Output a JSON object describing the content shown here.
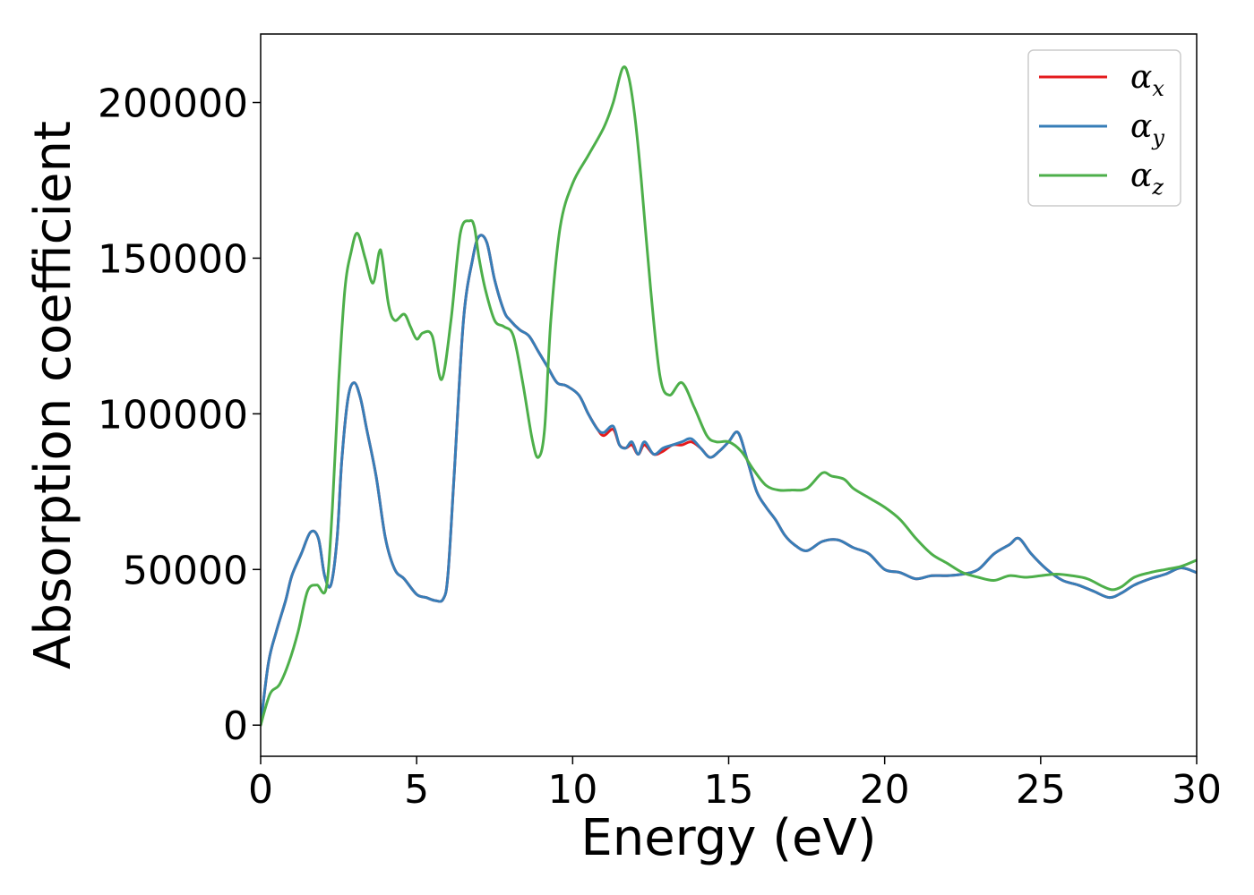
{
  "chart_data": {
    "type": "line",
    "xlabel": "Energy (eV)",
    "ylabel": "Absorption coefficient",
    "xlim": [
      0,
      30
    ],
    "ylim": [
      -10000,
      222000
    ],
    "xticks": [
      0,
      5,
      10,
      15,
      20,
      25,
      30
    ],
    "xtick_labels": [
      "0",
      "5",
      "10",
      "15",
      "20",
      "25",
      "30"
    ],
    "yticks": [
      0,
      50000,
      100000,
      150000,
      200000
    ],
    "ytick_labels": [
      "0",
      "50000",
      "100000",
      "150000",
      "200000"
    ],
    "grid": false,
    "legend_position": "top-right",
    "series": [
      {
        "name": "x",
        "legend_symbol": "α",
        "legend_subscript": "x",
        "color": "#e41a1c",
        "x": [
          0,
          0.25,
          0.5,
          0.8,
          1.0,
          1.3,
          1.6,
          1.85,
          2.05,
          2.25,
          2.45,
          2.6,
          2.8,
          3.0,
          3.2,
          3.4,
          3.7,
          4.0,
          4.3,
          4.6,
          5.0,
          5.3,
          5.6,
          5.85,
          6.0,
          6.2,
          6.5,
          6.8,
          7.0,
          7.25,
          7.5,
          7.8,
          8.0,
          8.3,
          8.6,
          8.9,
          9.2,
          9.5,
          9.8,
          10.2,
          10.5,
          10.8,
          11.0,
          11.3,
          11.5,
          11.7,
          11.9,
          12.1,
          12.3,
          12.6,
          12.9,
          13.2,
          13.5,
          13.8,
          14.1,
          14.4,
          14.7,
          15.0,
          15.3,
          15.6,
          15.9,
          16.2,
          16.5,
          16.8,
          17.1,
          17.5,
          18.0,
          18.5,
          19.0,
          19.5,
          20.0,
          20.5,
          21.0,
          21.5,
          22.0,
          22.5,
          23.0,
          23.5,
          24.0,
          24.3,
          24.7,
          25.2,
          25.7,
          26.2,
          26.7,
          27.2,
          27.6,
          28.0,
          28.5,
          29.0,
          29.5,
          30.0
        ],
        "y": [
          0,
          20000,
          30000,
          40000,
          48000,
          55000,
          62000,
          60000,
          48000,
          45000,
          60000,
          85000,
          105000,
          110000,
          105000,
          95000,
          80000,
          60000,
          50000,
          47000,
          42000,
          41000,
          40000,
          40500,
          48000,
          80000,
          130000,
          150000,
          157000,
          155000,
          143000,
          133000,
          130000,
          127000,
          125000,
          120000,
          115000,
          110000,
          109000,
          106000,
          100000,
          95000,
          93000,
          95000,
          90000,
          89000,
          90000,
          87000,
          90000,
          87000,
          88000,
          90000,
          90000,
          91000,
          89000,
          86000,
          88000,
          91000,
          94000,
          85000,
          75000,
          70000,
          66000,
          61000,
          58000,
          56000,
          59000,
          59500,
          57000,
          55000,
          50000,
          49000,
          47000,
          48000,
          48000,
          48500,
          50000,
          55000,
          58000,
          60000,
          55000,
          50000,
          46500,
          45000,
          43000,
          41000,
          42500,
          45000,
          47000,
          48500,
          50500,
          49000
        ]
      },
      {
        "name": "y",
        "legend_symbol": "α",
        "legend_subscript": "y",
        "color": "#377eb8",
        "x": [
          0,
          0.25,
          0.5,
          0.8,
          1.0,
          1.3,
          1.6,
          1.85,
          2.05,
          2.25,
          2.45,
          2.6,
          2.8,
          3.0,
          3.2,
          3.4,
          3.7,
          4.0,
          4.3,
          4.6,
          5.0,
          5.3,
          5.6,
          5.85,
          6.0,
          6.2,
          6.5,
          6.8,
          7.0,
          7.25,
          7.5,
          7.8,
          8.0,
          8.3,
          8.6,
          8.9,
          9.2,
          9.5,
          9.8,
          10.2,
          10.5,
          10.8,
          11.0,
          11.3,
          11.5,
          11.7,
          11.9,
          12.1,
          12.3,
          12.6,
          12.9,
          13.2,
          13.5,
          13.8,
          14.1,
          14.4,
          14.7,
          15.0,
          15.3,
          15.6,
          15.9,
          16.2,
          16.5,
          16.8,
          17.1,
          17.5,
          18.0,
          18.5,
          19.0,
          19.5,
          20.0,
          20.5,
          21.0,
          21.5,
          22.0,
          22.5,
          23.0,
          23.5,
          24.0,
          24.3,
          24.7,
          25.2,
          25.7,
          26.2,
          26.7,
          27.2,
          27.6,
          28.0,
          28.5,
          29.0,
          29.5,
          30.0
        ],
        "y": [
          0,
          20000,
          30000,
          40000,
          48000,
          55000,
          62000,
          60000,
          48000,
          45000,
          60000,
          85000,
          105000,
          110000,
          105000,
          95000,
          80000,
          60000,
          50000,
          47000,
          42000,
          41000,
          40000,
          40500,
          48000,
          80000,
          130000,
          150000,
          157000,
          155000,
          143000,
          133000,
          130000,
          127000,
          125000,
          120000,
          115000,
          110000,
          109000,
          106000,
          100000,
          95000,
          94000,
          96000,
          90000,
          89000,
          91000,
          87000,
          91000,
          87000,
          89000,
          90000,
          91000,
          92000,
          89000,
          86000,
          88000,
          91000,
          94000,
          85000,
          75000,
          70000,
          66000,
          61000,
          58000,
          56000,
          59000,
          59500,
          57000,
          55000,
          50000,
          49000,
          47000,
          48000,
          48000,
          48500,
          50000,
          55000,
          58000,
          60000,
          55000,
          50000,
          46500,
          45000,
          43000,
          41000,
          42500,
          45000,
          47000,
          48500,
          50500,
          49000
        ]
      },
      {
        "name": "z",
        "legend_symbol": "α",
        "legend_subscript": "z",
        "color": "#4daf4a",
        "x": [
          0,
          0.3,
          0.6,
          0.9,
          1.2,
          1.5,
          1.8,
          2.1,
          2.3,
          2.5,
          2.7,
          2.9,
          3.1,
          3.35,
          3.6,
          3.8,
          3.9,
          4.1,
          4.3,
          4.6,
          4.8,
          5.0,
          5.2,
          5.5,
          5.8,
          6.1,
          6.4,
          6.7,
          6.85,
          7.0,
          7.2,
          7.5,
          7.8,
          8.1,
          8.4,
          8.7,
          8.9,
          9.1,
          9.3,
          9.6,
          10.0,
          10.5,
          11.0,
          11.3,
          11.6,
          11.8,
          12.0,
          12.2,
          12.5,
          12.8,
          13.1,
          13.5,
          13.9,
          14.3,
          14.6,
          15.0,
          15.4,
          15.8,
          16.2,
          16.6,
          17.0,
          17.5,
          18.0,
          18.3,
          18.7,
          19.0,
          19.5,
          20.0,
          20.5,
          21.0,
          21.5,
          22.0,
          22.5,
          23.0,
          23.5,
          24.0,
          24.5,
          25.0,
          25.5,
          26.0,
          26.5,
          27.0,
          27.3,
          27.6,
          28.0,
          28.5,
          29.0,
          29.5,
          30.0
        ],
        "y": [
          0,
          10000,
          13000,
          20000,
          30000,
          43000,
          45000,
          44000,
          70000,
          110000,
          140000,
          152000,
          158000,
          150000,
          142000,
          152000,
          150000,
          135000,
          130000,
          132000,
          128000,
          124000,
          126000,
          125000,
          111000,
          130000,
          158000,
          162000,
          160000,
          150000,
          140000,
          130000,
          128000,
          125000,
          110000,
          92000,
          86000,
          95000,
          130000,
          160000,
          174000,
          183000,
          192000,
          200000,
          211000,
          208000,
          195000,
          175000,
          140000,
          112000,
          106000,
          110000,
          102000,
          93000,
          91000,
          91000,
          88000,
          82000,
          77000,
          75500,
          75500,
          76000,
          81000,
          80000,
          79000,
          76000,
          73000,
          70000,
          66000,
          60000,
          55000,
          52000,
          49000,
          47500,
          46500,
          48000,
          47500,
          48000,
          48500,
          48000,
          47000,
          44500,
          43500,
          44500,
          47500,
          49000,
          50000,
          51000,
          53000
        ]
      }
    ]
  }
}
